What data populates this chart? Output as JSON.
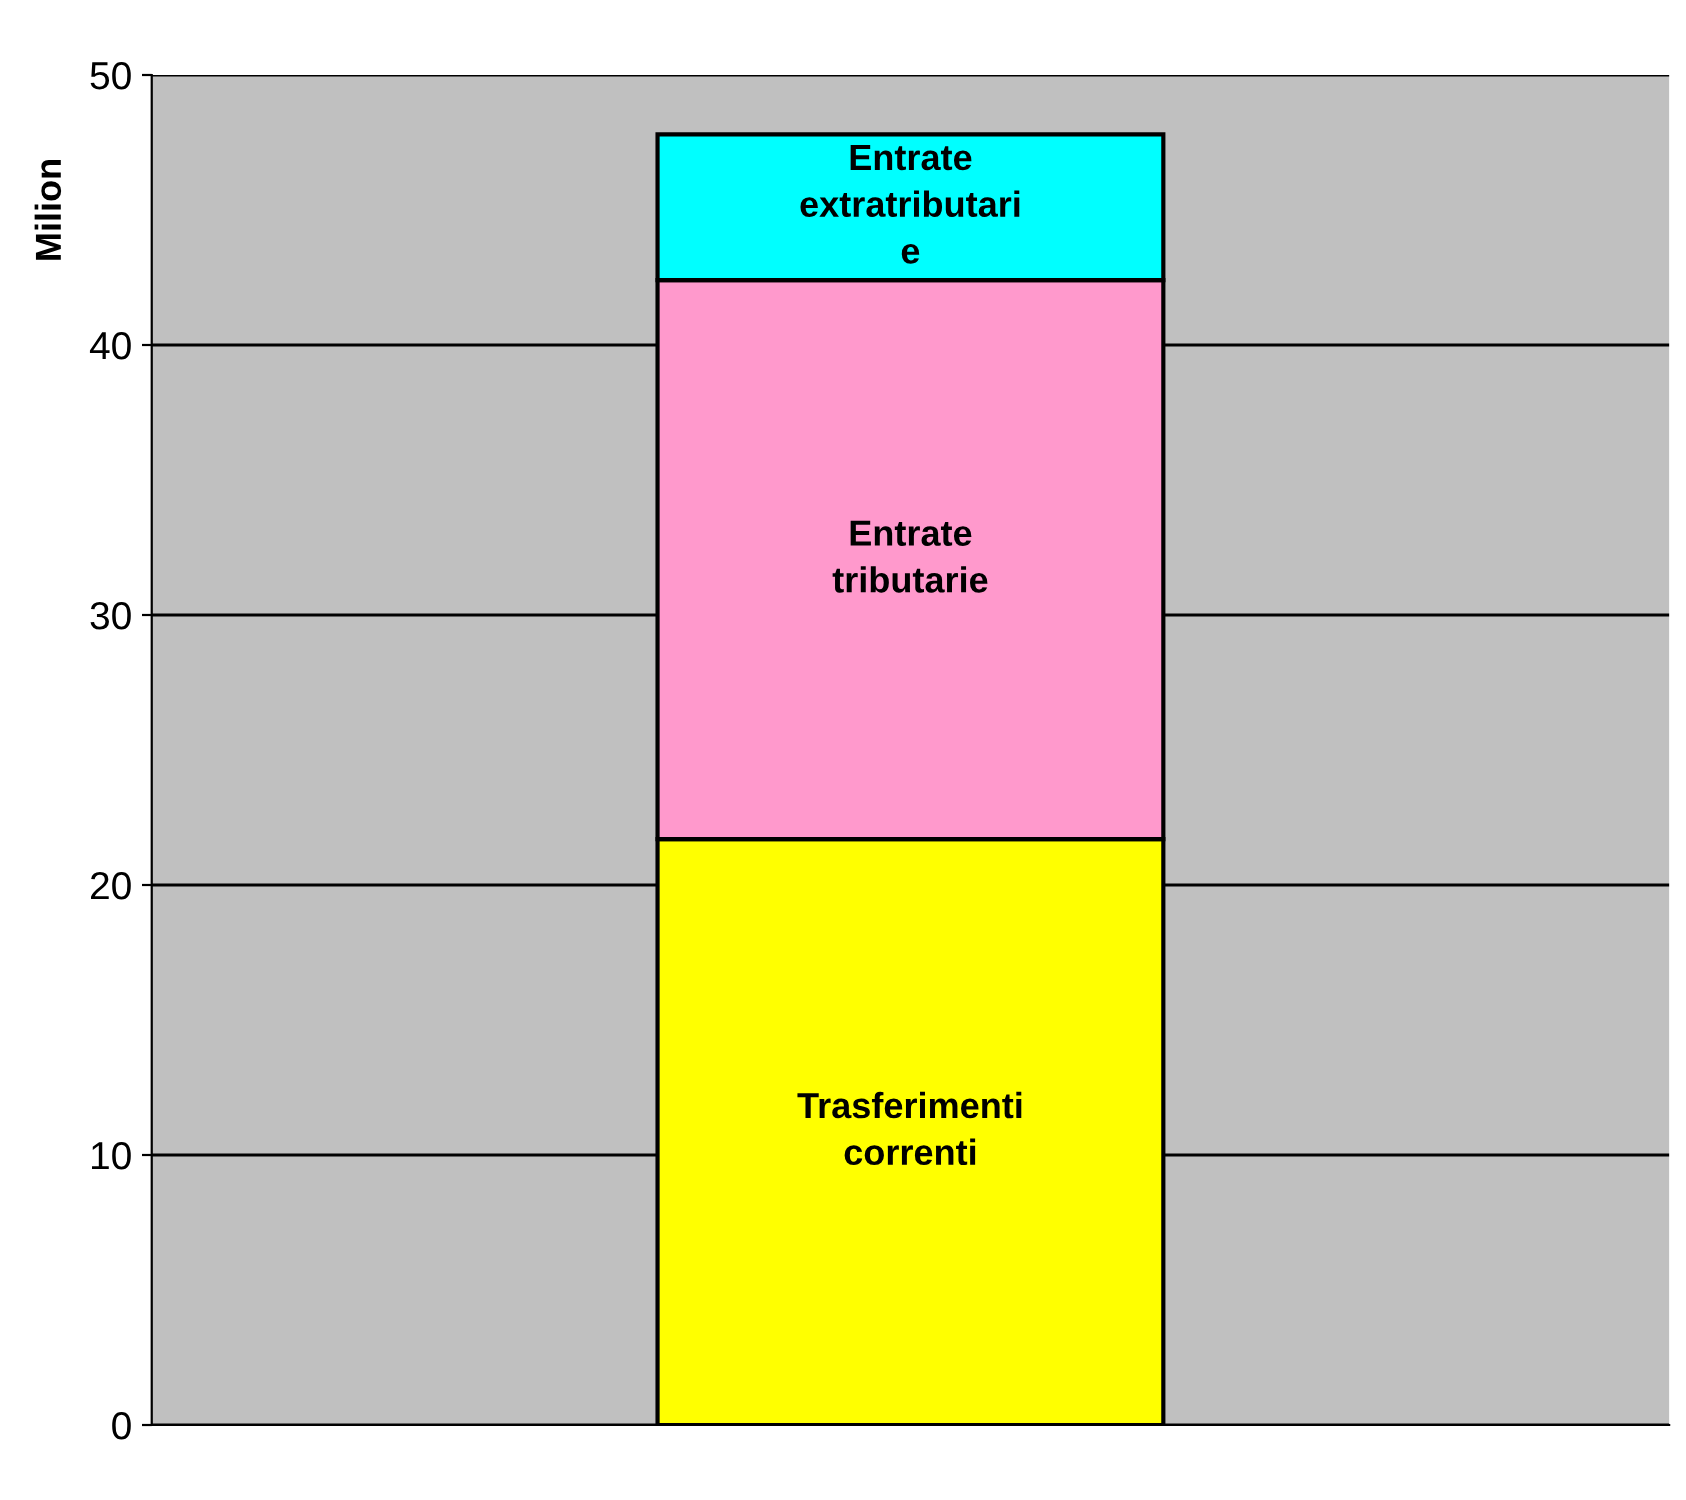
{
  "chart_data": {
    "type": "bar",
    "stacked": true,
    "ylabel": "Milion",
    "categories": [
      null
    ],
    "series": [
      {
        "name": "Trasferimenti\ncorrenti",
        "color": "#ffff00",
        "values": [
          21.7
        ]
      },
      {
        "name": "Entrate\ntributarie",
        "color": "#ff99cc",
        "values": [
          20.7
        ]
      },
      {
        "name": "Entrate\nextratributari\ne",
        "color": "#00ffff",
        "values": [
          5.4
        ]
      }
    ],
    "ylim": [
      0,
      50
    ],
    "yticks": [
      0,
      10,
      20,
      30,
      40,
      50
    ],
    "grid": "y",
    "legend": false
  }
}
